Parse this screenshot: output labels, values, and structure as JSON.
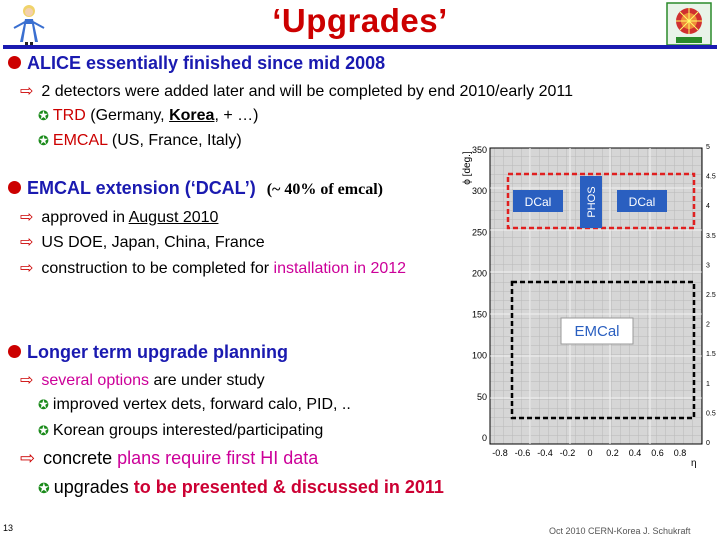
{
  "title": "‘Upgrades’",
  "section1": {
    "heading": "ALICE essentially finished since mid 2008",
    "sub": "2 detectors were added later and will be completed by end 2010/early 2011",
    "trd": {
      "name": "TRD",
      "rest_a": " (Germany, ",
      "korea": "Korea",
      "rest_b": ", + …)"
    },
    "emcal": {
      "name": "EMCAL",
      "rest": " (US, France, Italy)"
    }
  },
  "section2": {
    "heading": "EMCAL extension (‘DCAL’)",
    "note": "(~ 40% of emcal)",
    "approved_a": "approved in ",
    "approved_b": "August 2010",
    "funding": "US DOE, Japan, China, France",
    "construction_a": "construction to be completed for ",
    "construction_b": "installation in 2012"
  },
  "section3": {
    "heading": "Longer term upgrade planning",
    "options_a": "several options",
    "options_b": " are under study",
    "item1": "improved vertex dets, forward calo, PID, ..",
    "item2": "Korean groups interested/participating",
    "concrete_a": "concrete ",
    "concrete_b": "plans require first HI data",
    "present_a": "upgrades ",
    "present_b": "to be presented & discussed in 2011"
  },
  "figure": {
    "ylabel": "ϕ [deg.]",
    "xlabel": "η",
    "yticks": [
      "350",
      "300",
      "250",
      "200",
      "150",
      "100",
      "50",
      "0"
    ],
    "xticks": [
      "-0.8",
      "-0.6",
      "-0.4",
      "-0.2",
      "0",
      "0.2",
      "0.4",
      "0.6",
      "0.8"
    ],
    "zticks": [
      "5",
      "4.5",
      "4",
      "3.5",
      "3",
      "2.5",
      "2",
      "1.5",
      "1",
      "0.5",
      "0"
    ],
    "dcal_left": "DCal",
    "dcal_right": "DCal",
    "phos": "PHOS",
    "emcal": "EMCal"
  },
  "page_number": "13",
  "footer": "Oct 2010 CERN-Korea J. Schukraft",
  "colors": {
    "title": "#cc0000",
    "heading": "#1a1ab0",
    "accent": "#cc0099",
    "bullet": "#1a8a1a"
  },
  "icons": [
    "alice-wonderland-logo-icon",
    "alice-detector-logo-icon"
  ]
}
